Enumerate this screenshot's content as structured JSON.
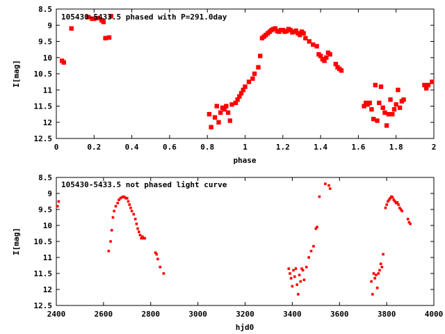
{
  "chart_data": [
    {
      "type": "scatter",
      "title": "105430-5433.5 phased with P=291.0day",
      "xlabel": "phase",
      "ylabel": "I[mag]",
      "xlim": [
        0,
        2
      ],
      "ylim": [
        12.5,
        8.5
      ],
      "y_inverted": true,
      "xticks": [
        "0",
        "0.2",
        "0.4",
        "0.6",
        "0.8",
        "1",
        "1.2",
        "1.4",
        "1.6",
        "1.8",
        "2"
      ],
      "yticks": [
        "8.5",
        "9",
        "9.5",
        "10",
        "10.5",
        "11",
        "11.5",
        "12",
        "12.5"
      ],
      "marker_color": "#ff0000",
      "grid": false,
      "series": [
        {
          "x": [
            0.03,
            0.04,
            0.08,
            0.17,
            0.19,
            0.2,
            0.22,
            0.24,
            0.25,
            0.26,
            0.28,
            0.29,
            0.81,
            0.82,
            0.84,
            0.85,
            0.86,
            0.87,
            0.88,
            0.89,
            0.9,
            0.91,
            0.92,
            0.93,
            0.95,
            0.96,
            0.97,
            0.98,
            0.99,
            1.0,
            1.02,
            1.04,
            1.05,
            1.07,
            1.08,
            1.09,
            1.1,
            1.11,
            1.12,
            1.13,
            1.14,
            1.15,
            1.16,
            1.17,
            1.18,
            1.19,
            1.2,
            1.21,
            1.22,
            1.23,
            1.24,
            1.25,
            1.26,
            1.27,
            1.28,
            1.29,
            1.3,
            1.31,
            1.32,
            1.34,
            1.36,
            1.38,
            1.39,
            1.4,
            1.41,
            1.42,
            1.43,
            1.44,
            1.45,
            1.48,
            1.49,
            1.5,
            1.51,
            1.63,
            1.64,
            1.65,
            1.66,
            1.67,
            1.68,
            1.69,
            1.7,
            1.71,
            1.72,
            1.73,
            1.74,
            1.75,
            1.76,
            1.77,
            1.78,
            1.79,
            1.8,
            1.81,
            1.82,
            1.83,
            1.84,
            1.95,
            1.96,
            1.97,
            1.99
          ],
          "y": [
            10.1,
            10.15,
            9.1,
            8.75,
            8.8,
            8.8,
            8.78,
            8.85,
            8.9,
            9.4,
            9.38,
            8.72,
            11.75,
            12.15,
            11.85,
            11.5,
            12.0,
            11.7,
            11.55,
            11.6,
            11.5,
            11.7,
            11.95,
            11.45,
            11.4,
            11.3,
            11.2,
            11.1,
            11.0,
            10.9,
            10.75,
            10.65,
            10.5,
            10.3,
            9.95,
            9.4,
            9.35,
            9.3,
            9.25,
            9.2,
            9.15,
            9.12,
            9.1,
            9.18,
            9.2,
            9.15,
            9.15,
            9.2,
            9.18,
            9.12,
            9.15,
            9.22,
            9.2,
            9.17,
            9.25,
            9.3,
            9.2,
            9.25,
            9.4,
            9.5,
            9.6,
            9.65,
            9.9,
            9.95,
            10.05,
            10.1,
            10.0,
            9.85,
            9.9,
            10.2,
            10.3,
            10.35,
            10.4,
            11.5,
            11.4,
            11.45,
            11.4,
            11.6,
            11.9,
            10.85,
            11.95,
            11.4,
            10.9,
            11.55,
            11.7,
            12.1,
            11.75,
            11.3,
            11.75,
            11.6,
            11.45,
            11.0,
            11.55,
            11.35,
            11.3,
            10.85,
            10.95,
            10.85,
            10.75
          ]
        }
      ]
    },
    {
      "type": "scatter",
      "title": "105430-5433.5 not phased light curve",
      "xlabel": "hjd0",
      "ylabel": "I[mag]",
      "xlim": [
        2400,
        4000
      ],
      "ylim": [
        12.5,
        8.5
      ],
      "y_inverted": true,
      "xticks": [
        "2400",
        "2600",
        "2800",
        "3000",
        "3200",
        "3400",
        "3600",
        "3800",
        "4000"
      ],
      "yticks": [
        "8.5",
        "9",
        "9.5",
        "10",
        "10.5",
        "11",
        "11.5",
        "12",
        "12.5"
      ],
      "marker_color": "#ff0000",
      "grid": false,
      "series": [
        {
          "x": [
            2405,
            2410,
            2622,
            2630,
            2635,
            2640,
            2645,
            2652,
            2660,
            2665,
            2672,
            2678,
            2685,
            2690,
            2695,
            2700,
            2705,
            2710,
            2715,
            2720,
            2728,
            2735,
            2740,
            2745,
            2750,
            2755,
            2760,
            2765,
            2770,
            2775,
            2820,
            2825,
            2830,
            2840,
            2855,
            3385,
            3390,
            3395,
            3400,
            3405,
            3410,
            3415,
            3420,
            3425,
            3430,
            3435,
            3440,
            3445,
            3450,
            3460,
            3470,
            3480,
            3490,
            3500,
            3505,
            3515,
            3540,
            3555,
            3560,
            3735,
            3740,
            3745,
            3750,
            3755,
            3760,
            3765,
            3770,
            3775,
            3780,
            3785,
            3795,
            3800,
            3805,
            3810,
            3815,
            3820,
            3825,
            3830,
            3835,
            3840,
            3845,
            3850,
            3855,
            3860,
            3865,
            3890,
            3895,
            3900
          ],
          "y": [
            9.4,
            9.25,
            10.8,
            10.5,
            10.15,
            9.75,
            9.55,
            9.4,
            9.3,
            9.2,
            9.15,
            9.12,
            9.1,
            9.12,
            9.15,
            9.15,
            9.25,
            9.35,
            9.45,
            9.55,
            9.65,
            9.8,
            9.95,
            10.1,
            10.2,
            10.3,
            10.4,
            10.35,
            10.4,
            10.4,
            10.85,
            10.9,
            11.05,
            11.3,
            11.5,
            11.35,
            11.5,
            11.65,
            11.9,
            11.4,
            11.6,
            11.35,
            11.85,
            12.15,
            11.55,
            11.75,
            11.35,
            11.4,
            11.7,
            11.3,
            11.0,
            10.8,
            10.65,
            10.1,
            10.05,
            9.1,
            8.7,
            8.75,
            8.85,
            11.75,
            12.15,
            11.5,
            11.65,
            11.55,
            11.95,
            11.5,
            11.4,
            11.2,
            11.3,
            10.9,
            9.45,
            9.35,
            9.25,
            9.2,
            9.15,
            9.1,
            9.12,
            9.2,
            9.25,
            9.3,
            9.28,
            9.35,
            9.45,
            9.5,
            9.55,
            9.8,
            9.9,
            9.95
          ]
        }
      ]
    }
  ]
}
